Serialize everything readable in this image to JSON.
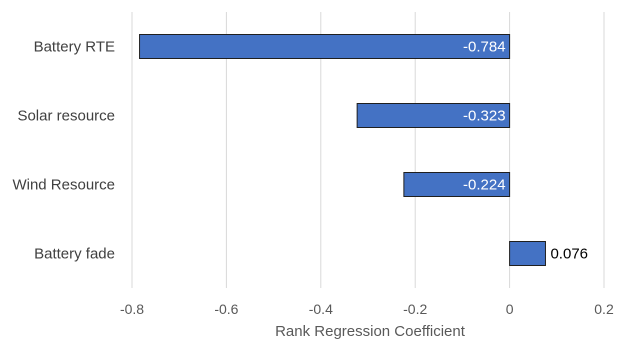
{
  "chart_data": {
    "type": "bar",
    "orientation": "horizontal",
    "categories": [
      "Battery RTE",
      "Solar resource",
      "Wind Resource",
      "Battery fade"
    ],
    "values": [
      -0.784,
      -0.323,
      -0.224,
      0.076
    ],
    "data_labels": [
      "-0.784",
      "-0.323",
      "-0.224",
      "0.076"
    ],
    "xlabel": "Rank Regression Coefficient",
    "ylabel": "",
    "title": "",
    "xlim": [
      -0.8,
      0.2
    ],
    "x_ticks": [
      -0.8,
      -0.6,
      -0.4,
      -0.2,
      0,
      0.2
    ],
    "x_tick_labels": [
      "-0.8",
      "-0.6",
      "-0.4",
      "-0.2",
      "0",
      "0.2"
    ],
    "grid": "vertical",
    "legend": "none",
    "colors": {
      "bar_fill": "#4472c4",
      "bar_stroke": "#1f1f1f",
      "grid": "#d9d9d9",
      "label_inside": "#ffffff",
      "label_outside": "#000000"
    }
  }
}
